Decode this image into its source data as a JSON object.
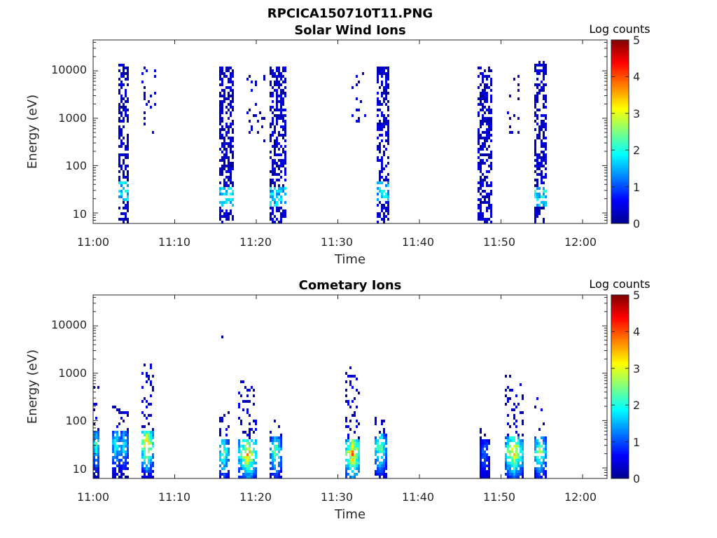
{
  "figure_title": "RPCICA150710T11.PNG",
  "chart_data": [
    {
      "type": "heatmap",
      "title": "Solar Wind Ions",
      "xlabel": "Time",
      "ylabel": "Energy (eV)",
      "x_ticks": [
        "11:00",
        "11:10",
        "11:20",
        "11:30",
        "11:40",
        "11:50",
        "12:00"
      ],
      "x_range_minutes": [
        0,
        63
      ],
      "y_scale": "log",
      "y_ticks": [
        "10",
        "100",
        "1000",
        "10000"
      ],
      "ylim": [
        6,
        45000
      ],
      "colorbar": {
        "label": "Log counts",
        "ticks": [
          "0",
          "1",
          "2",
          "3",
          "4",
          "5"
        ],
        "range": [
          0,
          5
        ],
        "colormap": "jet"
      },
      "bursts": [
        {
          "t_start": 3.0,
          "t_end": 4.4,
          "e_min": 6,
          "e_max": 15000,
          "low_e_peak": 30,
          "peak_log": 2.0
        },
        {
          "t_start": 5.8,
          "t_end": 7.6,
          "e_min": 500,
          "e_max": 15000,
          "low_e_peak": null,
          "peak_log": 0.5
        },
        {
          "t_start": 15.4,
          "t_end": 17.3,
          "e_min": 6,
          "e_max": 13000,
          "low_e_peak": 22,
          "peak_log": 2.0
        },
        {
          "t_start": 18.8,
          "t_end": 21.0,
          "e_min": 300,
          "e_max": 10000,
          "low_e_peak": null,
          "peak_log": 0.5
        },
        {
          "t_start": 21.6,
          "t_end": 23.6,
          "e_min": 6,
          "e_max": 13000,
          "low_e_peak": 22,
          "peak_log": 2.0
        },
        {
          "t_start": 31.8,
          "t_end": 33.6,
          "e_min": 800,
          "e_max": 9000,
          "low_e_peak": null,
          "peak_log": 0.5
        },
        {
          "t_start": 34.8,
          "t_end": 36.3,
          "e_min": 6,
          "e_max": 13000,
          "low_e_peak": 28,
          "peak_log": 2.0
        },
        {
          "t_start": 47.2,
          "t_end": 49.0,
          "e_min": 6,
          "e_max": 13000,
          "low_e_peak": null,
          "peak_log": 0.8
        },
        {
          "t_start": 50.6,
          "t_end": 52.3,
          "e_min": 500,
          "e_max": 9000,
          "low_e_peak": null,
          "peak_log": 0.5
        },
        {
          "t_start": 54.0,
          "t_end": 55.7,
          "e_min": 6,
          "e_max": 16000,
          "low_e_peak": 22,
          "peak_log": 2.2
        }
      ]
    },
    {
      "type": "heatmap",
      "title": "Cometary Ions",
      "xlabel": "Time",
      "ylabel": "Energy (eV)",
      "x_ticks": [
        "11:00",
        "11:10",
        "11:20",
        "11:30",
        "11:40",
        "11:50",
        "12:00"
      ],
      "x_range_minutes": [
        0,
        63
      ],
      "y_scale": "log",
      "y_ticks": [
        "10",
        "100",
        "1000",
        "10000"
      ],
      "ylim": [
        6,
        45000
      ],
      "colorbar": {
        "label": "Log counts",
        "ticks": [
          "0",
          "1",
          "2",
          "3",
          "4",
          "5"
        ],
        "range": [
          0,
          5
        ],
        "colormap": "jet"
      },
      "bursts": [
        {
          "t_center": 0.4,
          "width": 1.0,
          "e_peak": 30,
          "e_max": 700,
          "peak_log": 2.6
        },
        {
          "t_center": 2.8,
          "width": 1.2,
          "e_peak": 30,
          "e_max": 250,
          "peak_log": 2.5
        },
        {
          "t_center": 3.8,
          "width": 1.0,
          "e_peak": 30,
          "e_max": 150,
          "peak_log": 2.4
        },
        {
          "t_center": 6.6,
          "width": 1.5,
          "e_peak": 30,
          "e_max": 1500,
          "peak_log": 4.2
        },
        {
          "t_center": 16.0,
          "width": 1.3,
          "e_peak": 20,
          "e_max": 160,
          "peak_log": 3.0
        },
        {
          "t_center": 19.0,
          "width": 2.4,
          "e_peak": 20,
          "e_max": 800,
          "peak_log": 4.0
        },
        {
          "t_center": 22.4,
          "width": 1.4,
          "e_peak": 22,
          "e_max": 100,
          "peak_log": 3.0
        },
        {
          "t_center": 31.8,
          "width": 2.0,
          "e_peak": 20,
          "e_max": 1400,
          "peak_log": 4.2
        },
        {
          "t_center": 35.2,
          "width": 1.6,
          "e_peak": 25,
          "e_max": 120,
          "peak_log": 3.0
        },
        {
          "t_center": 48.0,
          "width": 1.4,
          "e_peak": 20,
          "e_max": 120,
          "peak_log": 1.5
        },
        {
          "t_center": 51.6,
          "width": 2.2,
          "e_peak": 22,
          "e_max": 1100,
          "peak_log": 4.0
        },
        {
          "t_center": 54.8,
          "width": 1.4,
          "e_peak": 22,
          "e_max": 300,
          "peak_log": 3.3
        }
      ],
      "isolated_points": [
        {
          "t": 15.8,
          "e": 5800
        }
      ]
    }
  ]
}
